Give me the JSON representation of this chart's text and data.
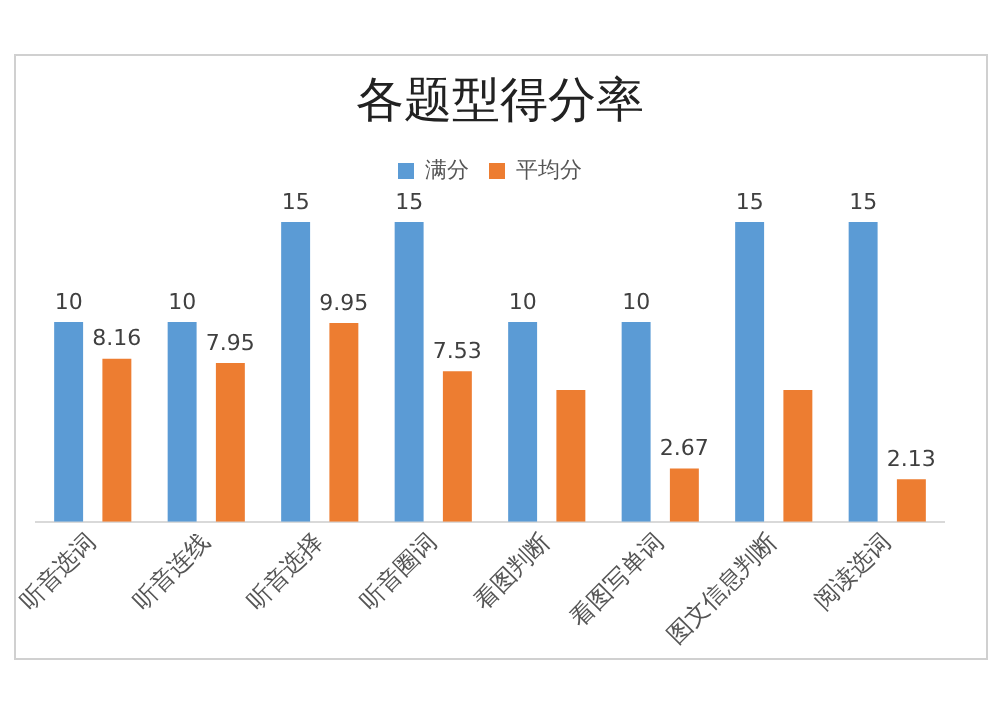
{
  "chart_data": {
    "type": "bar",
    "title": "各题型得分率",
    "categories": [
      "听音选词",
      "听音连线",
      "听音选择",
      "听音圈词",
      "看图判断",
      "看图写单词",
      "图文信息判断",
      "阅读选词"
    ],
    "series": [
      {
        "name": "满分",
        "color": "#5b9bd5",
        "values": [
          10,
          10,
          15,
          15,
          10,
          10,
          15,
          15
        ],
        "value_labels": [
          "10",
          "10",
          "15",
          "15",
          "10",
          "10",
          "15",
          "15"
        ]
      },
      {
        "name": "平均分",
        "color": "#ed7d31",
        "values": [
          8.16,
          7.95,
          9.95,
          7.53,
          6.6,
          2.67,
          6.6,
          2.13
        ],
        "value_labels": [
          "8.16",
          "7.95",
          "9.95",
          "7.53",
          null,
          "2.67",
          null,
          "2.13"
        ]
      }
    ],
    "legend": "top",
    "grid": false,
    "tick_labels": "x"
  }
}
